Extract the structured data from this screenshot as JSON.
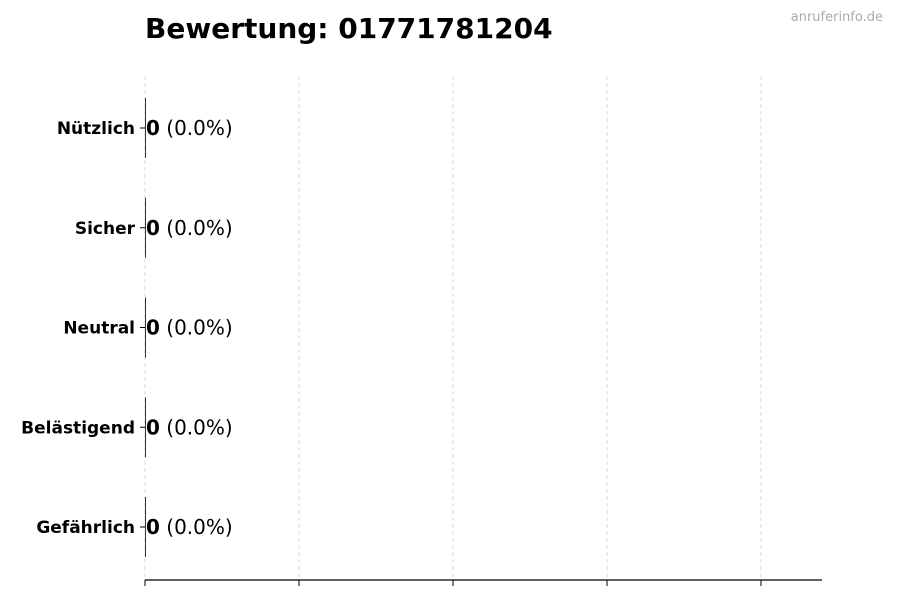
{
  "watermark": "anruferinfo.de",
  "chart_data": {
    "type": "bar",
    "orientation": "horizontal",
    "title": "Bewertung: 01771781204",
    "xlabel": "",
    "ylabel": "",
    "categories": [
      "Nützlich",
      "Sicher",
      "Neutral",
      "Belästigend",
      "Gefährlich"
    ],
    "values": [
      0,
      0,
      0,
      0,
      0
    ],
    "data_labels": [
      {
        "count": "0",
        "percent": "(0.0%)"
      },
      {
        "count": "0",
        "percent": "(0.0%)"
      },
      {
        "count": "0",
        "percent": "(0.0%)"
      },
      {
        "count": "0",
        "percent": "(0.0%)"
      },
      {
        "count": "0",
        "percent": "(0.0%)"
      }
    ],
    "x_tick_labels": [],
    "grid": "vertical dashed",
    "colors": {
      "grid": "#d9d9d9",
      "axis": "#000000",
      "bar_edge": "#000000"
    }
  }
}
